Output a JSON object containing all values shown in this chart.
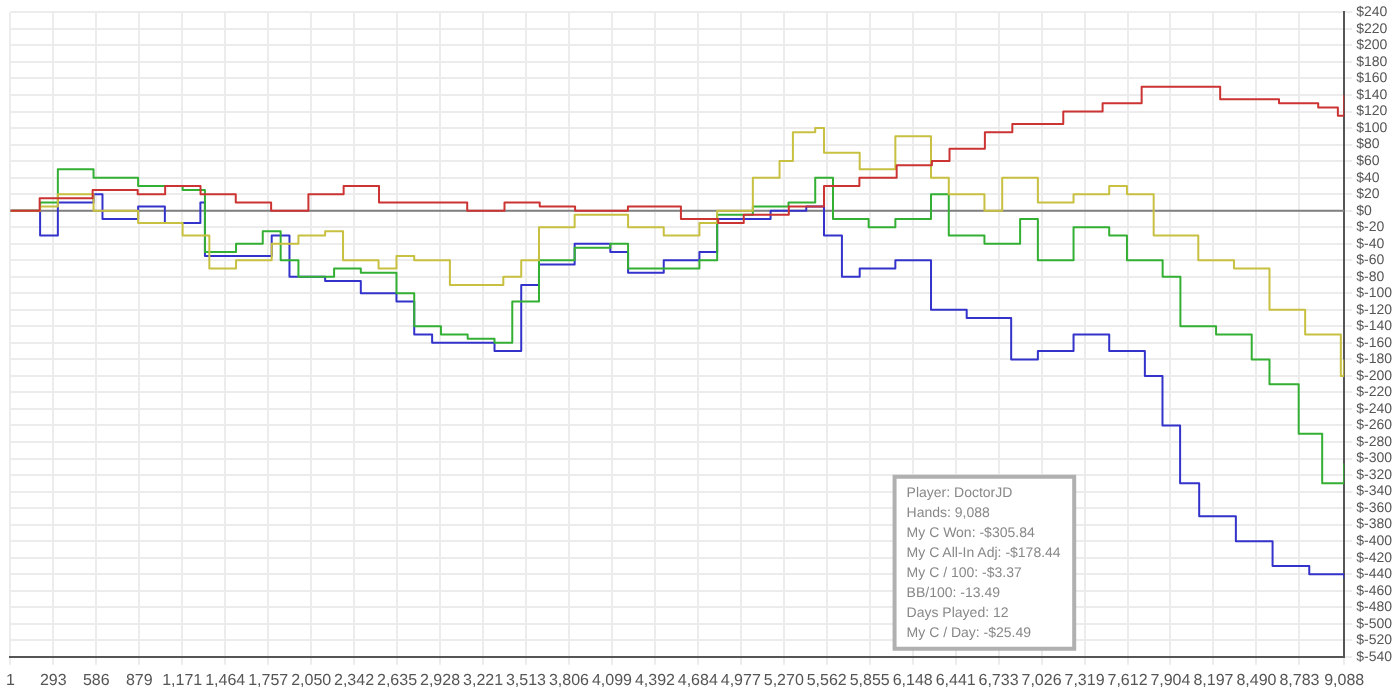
{
  "chart_data": {
    "type": "step",
    "xlim": [
      1,
      9088
    ],
    "xticks": [
      1,
      {
        "value": 293,
        "label": "293"
      },
      {
        "value": 586,
        "label": "586"
      },
      {
        "value": 879,
        "label": "879"
      },
      {
        "value": 1171,
        "label": "1,171"
      },
      {
        "value": 1464,
        "label": "1,464"
      },
      {
        "value": 1757,
        "label": "1,757"
      },
      {
        "value": 2050,
        "label": "2,050"
      },
      {
        "value": 2342,
        "label": "2,342"
      },
      {
        "value": 2635,
        "label": "2,635"
      },
      {
        "value": 2928,
        "label": "2,928"
      },
      {
        "value": 3221,
        "label": "3,221"
      },
      {
        "value": 3513,
        "label": "3,513"
      },
      {
        "value": 3806,
        "label": "3,806"
      },
      {
        "value": 4099,
        "label": "4,099"
      },
      {
        "value": 4392,
        "label": "4,392"
      },
      {
        "value": 4684,
        "label": "4,684"
      },
      {
        "value": 4977,
        "label": "4,977"
      },
      {
        "value": 5270,
        "label": "5,270"
      },
      {
        "value": 5562,
        "label": "5,562"
      },
      {
        "value": 5855,
        "label": "5,855"
      },
      {
        "value": 6148,
        "label": "6,148"
      },
      {
        "value": 6441,
        "label": "6,441"
      },
      {
        "value": 6733,
        "label": "6,733"
      },
      {
        "value": 7026,
        "label": "7,026"
      },
      {
        "value": 7319,
        "label": "7,319"
      },
      {
        "value": 7612,
        "label": "7,612"
      },
      {
        "value": 7904,
        "label": "7,904"
      },
      {
        "value": 8197,
        "label": "8,197"
      },
      {
        "value": 8490,
        "label": "8,490"
      },
      {
        "value": 8783,
        "label": "8,783"
      },
      {
        "value": 9088,
        "label": "9,088"
      }
    ],
    "ylim": [
      -540,
      240
    ],
    "yticks": [
      {
        "value": -540,
        "label": "$-540"
      },
      {
        "value": -520,
        "label": "$-520"
      },
      {
        "value": -500,
        "label": "$-500"
      },
      {
        "value": -480,
        "label": "$-480"
      },
      {
        "value": -460,
        "label": "$-460"
      },
      {
        "value": -440,
        "label": "$-440"
      },
      {
        "value": -420,
        "label": "$-420"
      },
      {
        "value": -400,
        "label": "$-400"
      },
      {
        "value": -380,
        "label": "$-380"
      },
      {
        "value": -360,
        "label": "$-360"
      },
      {
        "value": -340,
        "label": "$-340"
      },
      {
        "value": -320,
        "label": "$-320"
      },
      {
        "value": -300,
        "label": "$-300"
      },
      {
        "value": -280,
        "label": "$-280"
      },
      {
        "value": -260,
        "label": "$-260"
      },
      {
        "value": -240,
        "label": "$-240"
      },
      {
        "value": -220,
        "label": "$-220"
      },
      {
        "value": -200,
        "label": "$-200"
      },
      {
        "value": -180,
        "label": "$-180"
      },
      {
        "value": -160,
        "label": "$-160"
      },
      {
        "value": -140,
        "label": "$-140"
      },
      {
        "value": -120,
        "label": "$-120"
      },
      {
        "value": -100,
        "label": "$-100"
      },
      {
        "value": -80,
        "label": "$-80"
      },
      {
        "value": -60,
        "label": "$-60"
      },
      {
        "value": -40,
        "label": "$-40"
      },
      {
        "value": -20,
        "label": "$-20"
      },
      {
        "value": 0,
        "label": "$0"
      },
      {
        "value": 20,
        "label": "$20"
      },
      {
        "value": 40,
        "label": "$40"
      },
      {
        "value": 60,
        "label": "$60"
      },
      {
        "value": 80,
        "label": "$80"
      },
      {
        "value": 100,
        "label": "$100"
      },
      {
        "value": 120,
        "label": "$120"
      },
      {
        "value": 140,
        "label": "$140"
      },
      {
        "value": 160,
        "label": "$160"
      },
      {
        "value": 180,
        "label": "$180"
      },
      {
        "value": 200,
        "label": "$200"
      },
      {
        "value": 220,
        "label": "$220"
      },
      {
        "value": 240,
        "label": "$240"
      }
    ],
    "grid": true,
    "legend": false,
    "ref_lines": [
      {
        "axis": "y",
        "value": 0,
        "color": "#808080"
      }
    ],
    "annotations": [
      "Player: DoctorJD",
      "Hands: 9,088",
      "My C Won: -$305.84",
      "My C All-In Adj: -$178.44",
      "My C / 100: -$3.37",
      "BB/100: -13.49",
      "Days Played: 12",
      "My C / Day: -$25.49"
    ],
    "series": [
      {
        "color": "#cc3333",
        "x": [
          1,
          200,
          561,
          868,
          1055,
          1296,
          1536,
          1777,
          2031,
          2271,
          2512,
          2752,
          3113,
          3367,
          3607,
          3848,
          4208,
          4569,
          4823,
          4997,
          5304,
          5544,
          5785,
          6039,
          6279,
          6399,
          6640,
          6827,
          7174,
          7442,
          7708,
          8243,
          8644,
          8911,
          9045,
          9088
        ],
        "values": [
          0,
          15,
          25,
          20,
          30,
          20,
          10,
          0,
          20,
          30,
          10,
          10,
          0,
          10,
          5,
          0,
          5,
          -10,
          -15,
          -5,
          5,
          30,
          40,
          55,
          60,
          75,
          95,
          105,
          120,
          130,
          150,
          135,
          130,
          125,
          115,
          140
        ]
      },
      {
        "color": "#c8c040",
        "x": [
          1,
          203,
          324,
          567,
          871,
          1174,
          1356,
          1538,
          1781,
          1963,
          2145,
          2267,
          2509,
          2631,
          2752,
          2995,
          3238,
          3359,
          3481,
          3602,
          3845,
          4088,
          4209,
          4452,
          4695,
          4816,
          5059,
          5241,
          5332,
          5484,
          5544,
          5787,
          6030,
          6273,
          6394,
          6637,
          6758,
          7001,
          7244,
          7487,
          7608,
          7790,
          8094,
          8337,
          8579,
          8822,
          9065,
          9088
        ],
        "values": [
          0,
          5,
          20,
          0,
          -15,
          -30,
          -70,
          -60,
          -40,
          -30,
          -25,
          -60,
          -70,
          -55,
          -60,
          -90,
          -90,
          -80,
          -60,
          -20,
          -5,
          -5,
          -20,
          -30,
          -15,
          0,
          40,
          60,
          95,
          100,
          70,
          50,
          90,
          40,
          20,
          0,
          40,
          10,
          20,
          30,
          20,
          -30,
          -60,
          -70,
          -120,
          -150,
          -200,
          -180
        ]
      },
      {
        "color": "#33b033",
        "x": [
          1,
          203,
          324,
          567,
          871,
          1174,
          1326,
          1538,
          1720,
          1842,
          1963,
          2206,
          2388,
          2631,
          2752,
          2934,
          3116,
          3299,
          3420,
          3602,
          3845,
          4088,
          4209,
          4452,
          4695,
          4816,
          5059,
          5302,
          5484,
          5605,
          5848,
          6030,
          6273,
          6394,
          6637,
          6880,
          7001,
          7244,
          7487,
          7608,
          7851,
          7972,
          8215,
          8458,
          8579,
          8778,
          8938,
          9088
        ],
        "values": [
          0,
          10,
          50,
          40,
          30,
          25,
          -50,
          -40,
          -25,
          -60,
          -80,
          -70,
          -75,
          -100,
          -140,
          -150,
          -155,
          -160,
          -110,
          -60,
          -45,
          -40,
          -70,
          -70,
          -60,
          -5,
          5,
          10,
          40,
          -10,
          -20,
          -10,
          20,
          -30,
          -40,
          -10,
          -60,
          -20,
          -30,
          -60,
          -80,
          -140,
          -150,
          -180,
          -210,
          -270,
          -330,
          -306
        ]
      },
      {
        "color": "#3333cc",
        "x": [
          1,
          203,
          324,
          567,
          628,
          871,
          1053,
          1295,
          1326,
          1538,
          1781,
          1902,
          2145,
          2388,
          2631,
          2752,
          2874,
          3116,
          3299,
          3481,
          3602,
          3845,
          4088,
          4209,
          4452,
          4695,
          4816,
          5180,
          5423,
          5544,
          5666,
          5787,
          6030,
          6273,
          6516,
          6758,
          6819,
          7001,
          7244,
          7487,
          7730,
          7850,
          7970,
          8100,
          8350,
          8600,
          8850,
          9088
        ],
        "values": [
          0,
          -30,
          10,
          20,
          -10,
          5,
          -15,
          10,
          -55,
          -55,
          -30,
          -80,
          -85,
          -100,
          -110,
          -150,
          -160,
          -160,
          -170,
          -90,
          -65,
          -40,
          -50,
          -75,
          -60,
          -50,
          -10,
          0,
          5,
          -30,
          -80,
          -70,
          -60,
          -120,
          -130,
          -130,
          -180,
          -170,
          -150,
          -170,
          -200,
          -260,
          -330,
          -370,
          -400,
          -430,
          -440,
          -445
        ]
      }
    ]
  }
}
